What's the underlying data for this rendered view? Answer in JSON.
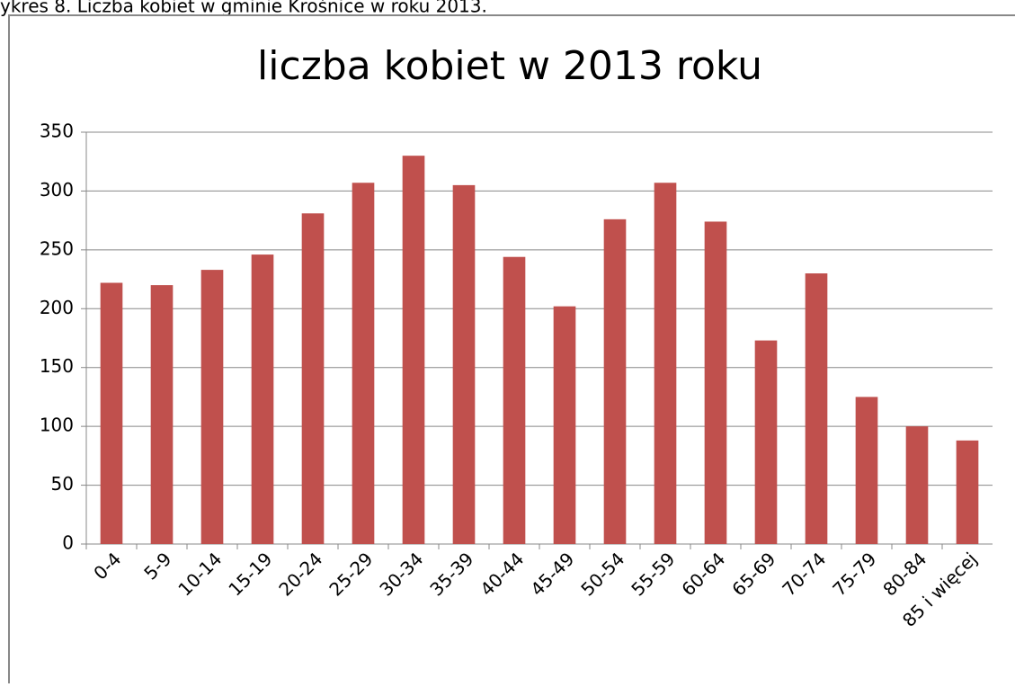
{
  "caption": "ykres 8. Liczba kobiet w gminie Krośnice w roku 2013.",
  "chart_data": {
    "type": "bar",
    "title": "liczba kobiet w 2013 roku",
    "categories": [
      "0-4",
      "5-9",
      "10-14",
      "15-19",
      "20-24",
      "25-29",
      "30-34",
      "35-39",
      "40-44",
      "45-49",
      "50-54",
      "55-59",
      "60-64",
      "65-69",
      "70-74",
      "75-79",
      "80-84",
      "85 i więcej"
    ],
    "values": [
      222,
      220,
      233,
      246,
      281,
      307,
      330,
      305,
      244,
      202,
      276,
      307,
      274,
      173,
      230,
      125,
      100,
      88
    ],
    "color": "#c0504d",
    "ylim": [
      0,
      350
    ],
    "yticks": [
      0,
      50,
      100,
      150,
      200,
      250,
      300,
      350
    ],
    "grid": true
  }
}
